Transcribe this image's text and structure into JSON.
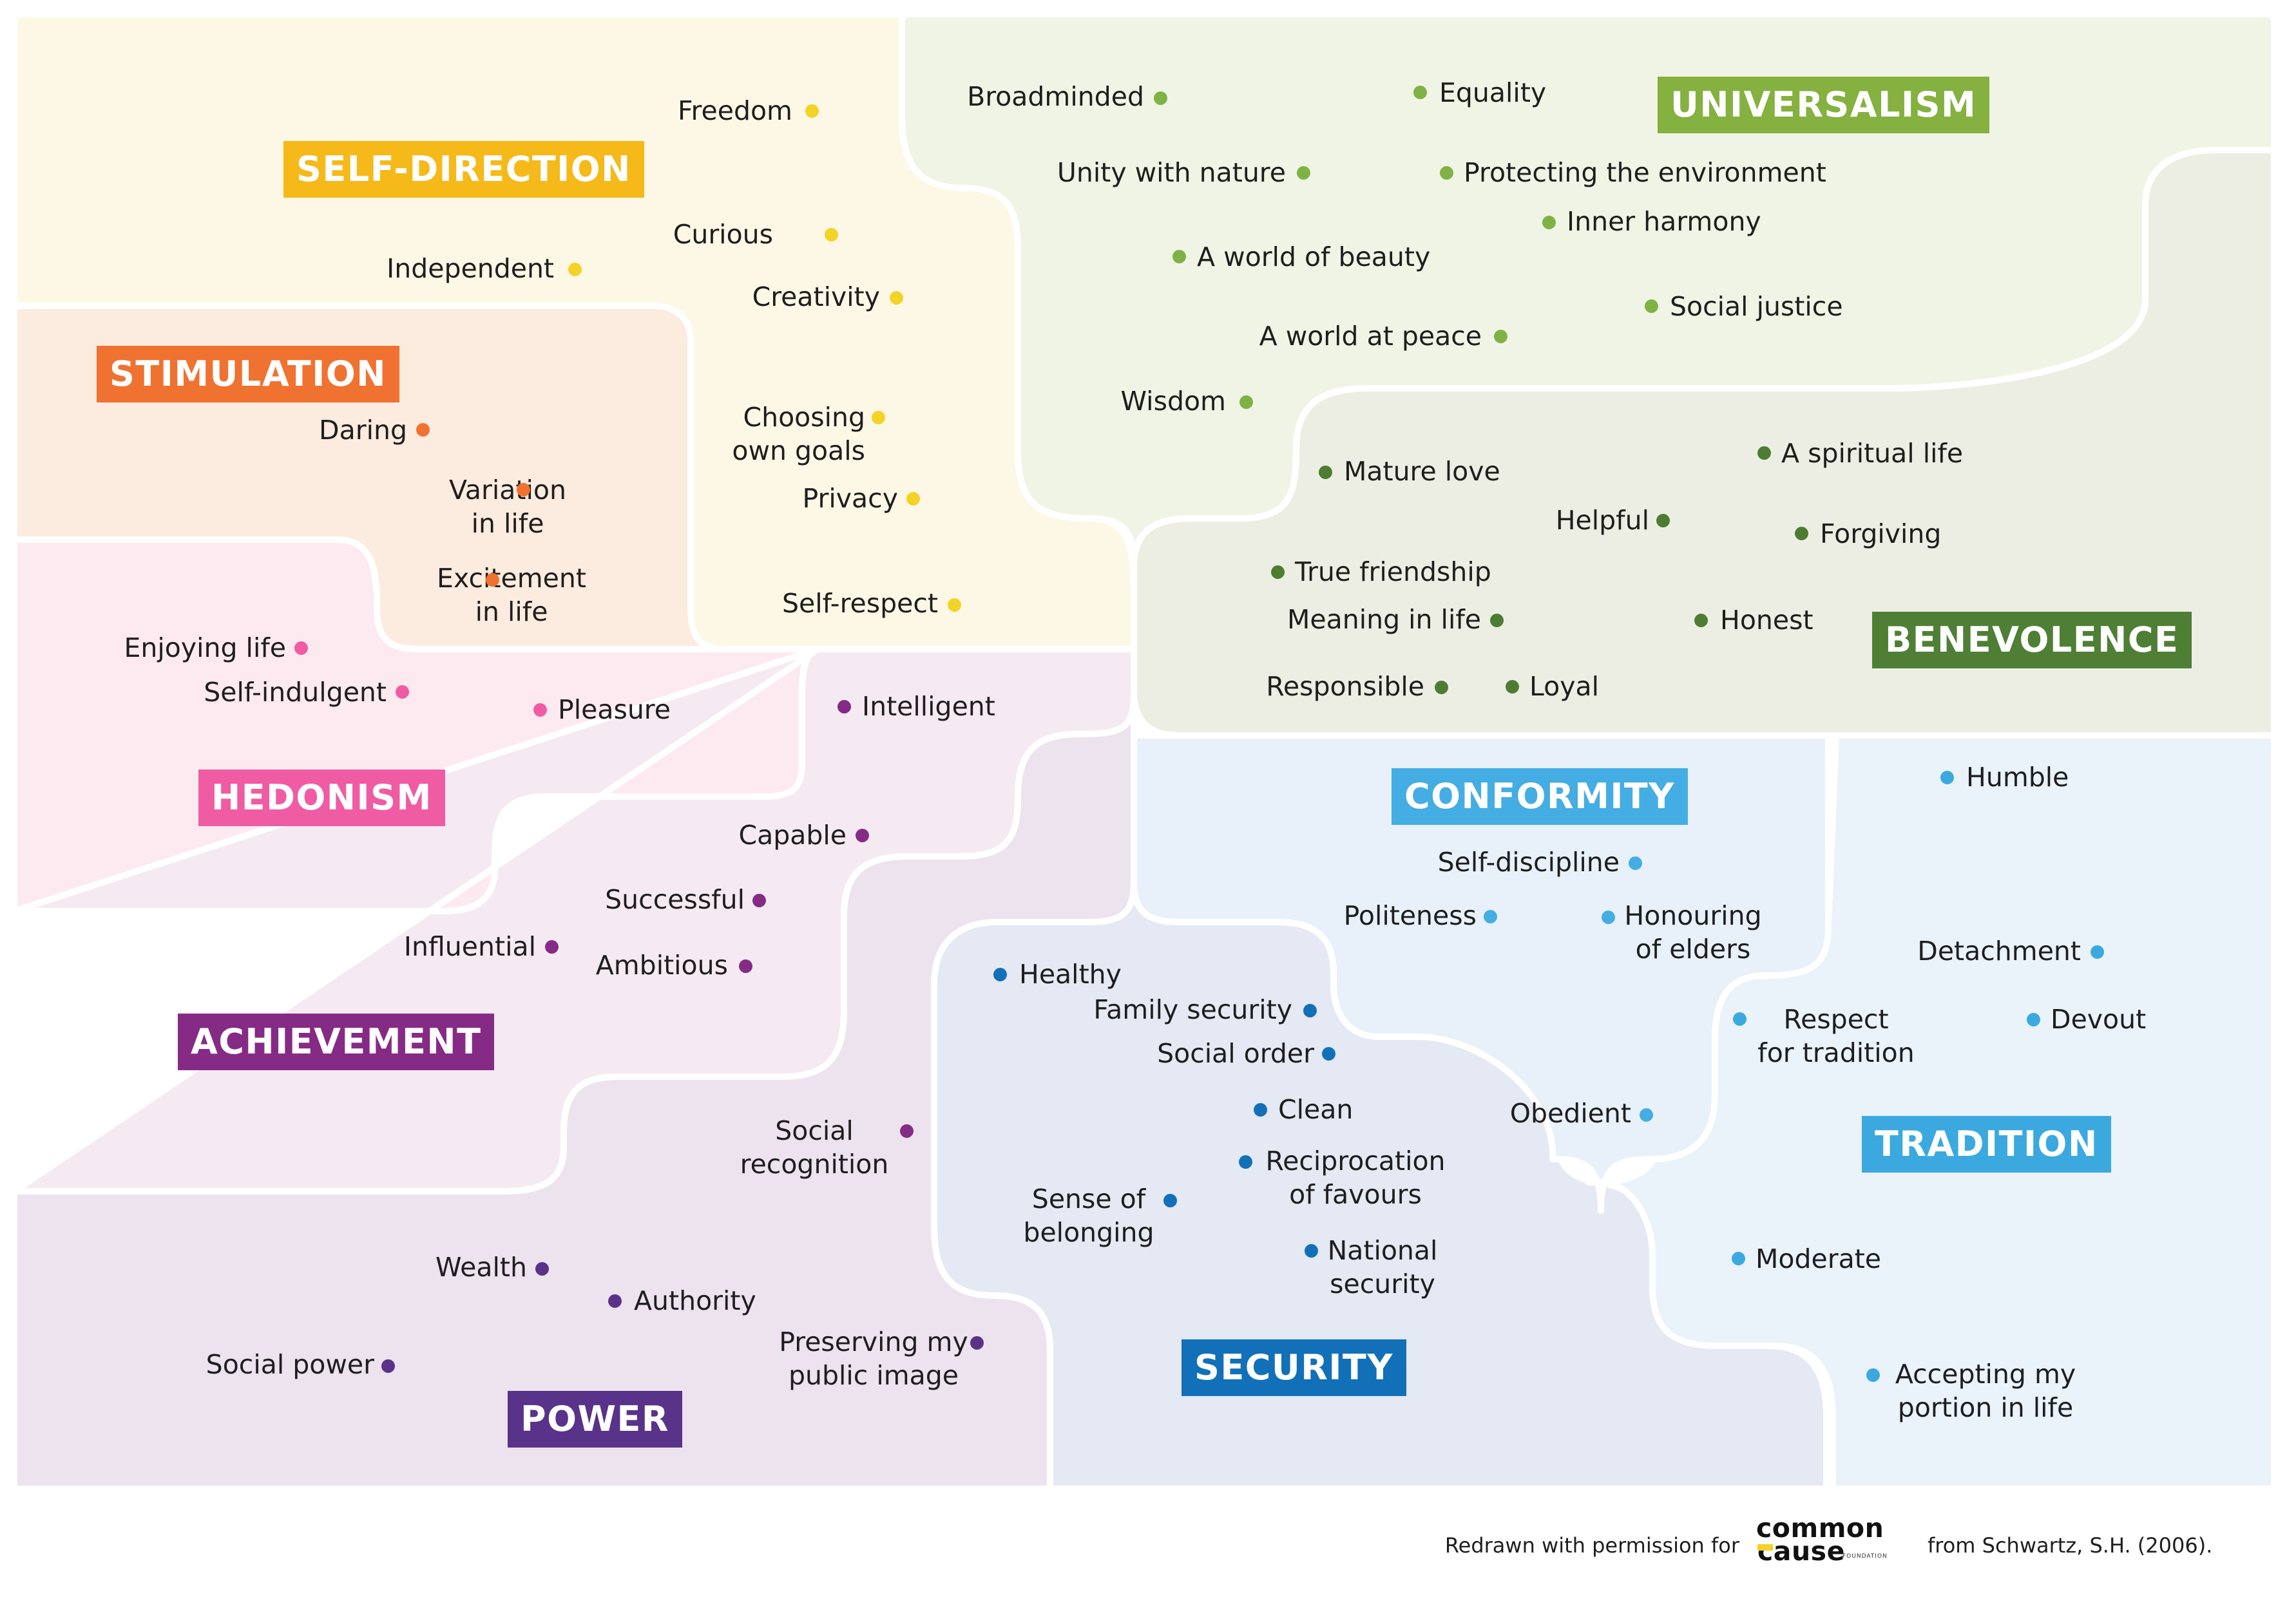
{
  "regions": [
    {
      "key": "self_direction",
      "label": "SELF-DIRECTION",
      "color": "#f5b919",
      "bg": "#fdf7e6",
      "dot": "#f3d326"
    },
    {
      "key": "universalism",
      "label": "UNIVERSALISM",
      "color": "#84b13f",
      "bg": "#f0f4e5",
      "dot": "#7fb244"
    },
    {
      "key": "benevolence",
      "label": "BENEVOLENCE",
      "color": "#4f7f35",
      "bg": "#edeee3",
      "dot": "#4c7d32"
    },
    {
      "key": "stimulation",
      "label": "STIMULATION",
      "color": "#f07230",
      "bg": "#fcebdf",
      "dot": "#f07230"
    },
    {
      "key": "hedonism",
      "label": "HEDONISM",
      "color": "#ef5ca3",
      "bg": "#fdeaf0",
      "dot": "#ef5ca3"
    },
    {
      "key": "achievement",
      "label": "ACHIEVEMENT",
      "color": "#852b85",
      "bg": "#f5eaf2",
      "dot": "#852b85"
    },
    {
      "key": "power",
      "label": "POWER",
      "color": "#593289",
      "bg": "#ece3ef",
      "dot": "#5a3389"
    },
    {
      "key": "security",
      "label": "SECURITY",
      "color": "#1170b8",
      "bg": "#e4e9f3",
      "dot": "#1170b8"
    },
    {
      "key": "conformity",
      "label": "CONFORMITY",
      "color": "#44ade3",
      "bg": "#e8f1fa",
      "dot": "#44ade3"
    },
    {
      "key": "tradition",
      "label": "TRADITION",
      "color": "#3ba9e0",
      "bg": "#eaf2fa",
      "dot": "#3ba9e0"
    }
  ],
  "values": {
    "self_direction": [
      "Freedom",
      "Curious",
      "Independent",
      "Creativity",
      "Choosing\nown goals",
      "Privacy",
      "Self-respect"
    ],
    "universalism": [
      "Broadminded",
      "Equality",
      "Unity with nature",
      "Protecting the environment",
      "Inner harmony",
      "A world of beauty",
      "Social justice",
      "A world at peace",
      "Wisdom"
    ],
    "benevolence": [
      "Mature love",
      "A spiritual life",
      "Helpful",
      "Forgiving",
      "True friendship",
      "Meaning in life",
      "Honest",
      "Responsible",
      "Loyal"
    ],
    "stimulation": [
      "Daring",
      "Variation\nin life",
      "Excitement\nin life"
    ],
    "hedonism": [
      "Enjoying life",
      "Self-indulgent",
      "Pleasure"
    ],
    "achievement": [
      "Intelligent",
      "Capable",
      "Successful",
      "Influential",
      "Ambitious",
      "Social\nrecognition"
    ],
    "power": [
      "Wealth",
      "Authority",
      "Social power",
      "Preserving my\npublic image"
    ],
    "security": [
      "Healthy",
      "Family security",
      "Social order",
      "Clean",
      "Reciprocation\nof favours",
      "Sense of\nbelonging",
      "National\nsecurity"
    ],
    "conformity": [
      "Self-discipline",
      "Politeness",
      "Honouring\nof elders",
      "Obedient"
    ],
    "tradition": [
      "Humble",
      "Detachment",
      "Respect\nfor tradition",
      "Devout",
      "Moderate",
      "Accepting my\nportion in life"
    ]
  },
  "footer": {
    "left_text": "Redrawn with permission for",
    "logo_line1": "common",
    "logo_line2": "cause",
    "logo_sub": "FOUNDATION",
    "right_text": "from Schwartz, S.H. (2006)."
  },
  "icons": {
    "logo": "common-cause-foundation-logo",
    "bullet": "dot"
  }
}
